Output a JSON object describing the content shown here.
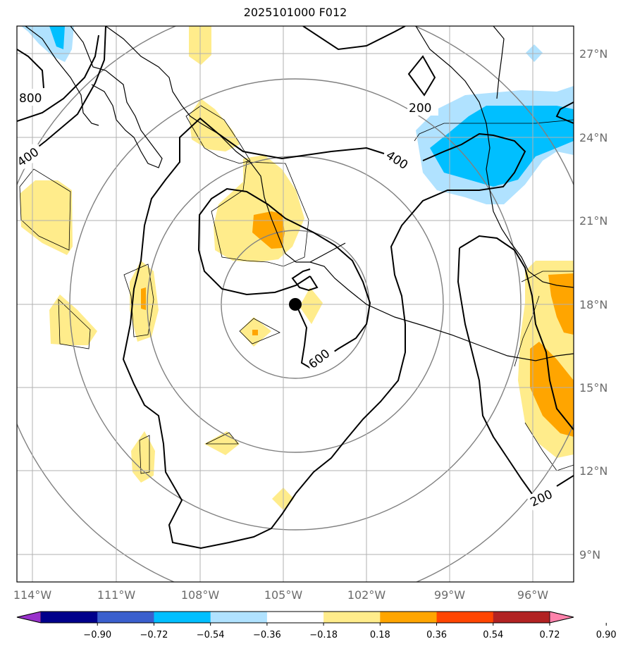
{
  "title": "2025101000 F012",
  "map": {
    "lon_labels": [
      "114°W",
      "111°W",
      "108°W",
      "105°W",
      "102°W",
      "99°W",
      "96°W"
    ],
    "lat_labels": [
      "27°N",
      "24°N",
      "21°N",
      "18°N",
      "15°N",
      "12°N",
      "9°N"
    ],
    "contour_labels": [
      "800",
      "400",
      "200",
      "400",
      "600",
      "200"
    ],
    "storm_center": {
      "lon": -104.6,
      "lat": 18.0
    }
  },
  "colorbar": {
    "ticks": [
      "−0.90",
      "−0.72",
      "−0.54",
      "−0.36",
      "−0.18",
      "0.18",
      "0.36",
      "0.54",
      "0.72",
      "0.90"
    ],
    "colors": [
      "#9932cc",
      "#00008b",
      "#3a5fcd",
      "#00bfff",
      "#b0e2ff",
      "#ffffff",
      "#ffec8b",
      "#ffa500",
      "#ff4500",
      "#b22222",
      "#ff82ab"
    ]
  }
}
